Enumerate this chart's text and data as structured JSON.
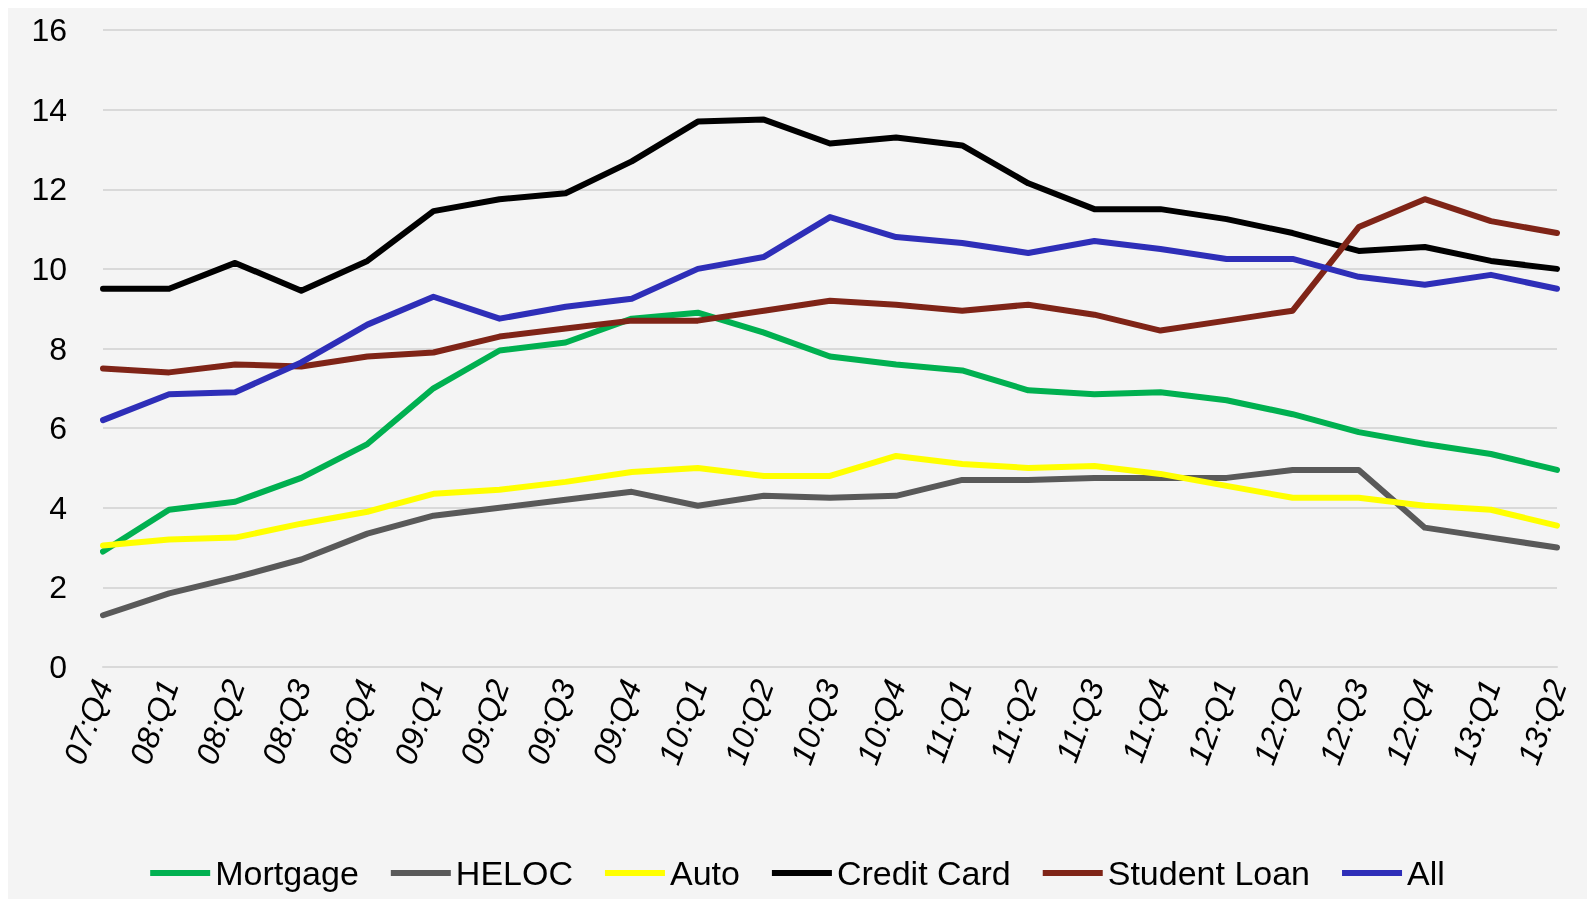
{
  "chart_data": {
    "type": "line",
    "categories": [
      "07:Q4",
      "08:Q1",
      "08:Q2",
      "08:Q3",
      "08:Q4",
      "09:Q1",
      "09:Q2",
      "09:Q3",
      "09:Q4",
      "10:Q1",
      "10:Q2",
      "10:Q3",
      "10:Q4",
      "11:Q1",
      "11:Q2",
      "11:Q3",
      "11:Q4",
      "12:Q1",
      "12:Q2",
      "12:Q3",
      "12:Q4",
      "13:Q1",
      "13:Q2"
    ],
    "series": [
      {
        "name": "Mortgage",
        "color": "#00b050",
        "values": [
          2.9,
          3.95,
          4.15,
          4.75,
          5.6,
          7.0,
          7.95,
          8.15,
          8.75,
          8.9,
          8.4,
          7.8,
          7.6,
          7.45,
          6.95,
          6.85,
          6.9,
          6.7,
          6.35,
          5.9,
          5.6,
          5.35,
          4.95
        ]
      },
      {
        "name": "HELOC",
        "color": "#595959",
        "values": [
          1.3,
          1.85,
          2.25,
          2.7,
          3.35,
          3.8,
          4.0,
          4.2,
          4.4,
          4.05,
          4.3,
          4.25,
          4.3,
          4.7,
          4.7,
          4.75,
          4.75,
          4.75,
          4.95,
          4.95,
          3.5,
          3.25,
          3.0
        ]
      },
      {
        "name": "Auto",
        "color": "#ffff00",
        "values": [
          3.05,
          3.2,
          3.25,
          3.6,
          3.9,
          4.35,
          4.45,
          4.65,
          4.9,
          5.0,
          4.8,
          4.8,
          5.3,
          5.1,
          5.0,
          5.05,
          4.85,
          4.55,
          4.25,
          4.25,
          4.05,
          3.95,
          3.55
        ]
      },
      {
        "name": "Credit Card",
        "color": "#000000",
        "values": [
          9.5,
          9.5,
          10.15,
          9.45,
          10.2,
          11.45,
          11.75,
          11.9,
          12.7,
          13.7,
          13.75,
          13.15,
          13.3,
          13.1,
          12.15,
          11.5,
          11.5,
          11.25,
          10.9,
          10.45,
          10.55,
          10.2,
          10.0
        ]
      },
      {
        "name": "Student Loan",
        "color": "#7f2417",
        "values": [
          7.5,
          7.4,
          7.6,
          7.55,
          7.8,
          7.9,
          8.3,
          8.5,
          8.7,
          8.7,
          8.95,
          9.2,
          9.1,
          8.95,
          9.1,
          8.85,
          8.45,
          8.7,
          8.95,
          11.05,
          11.75,
          11.2,
          10.9
        ]
      },
      {
        "name": "All",
        "color": "#2e2eb8",
        "values": [
          6.2,
          6.85,
          6.9,
          7.65,
          8.6,
          9.3,
          8.75,
          9.05,
          9.25,
          10.0,
          10.3,
          11.3,
          10.8,
          10.65,
          10.4,
          10.7,
          10.5,
          10.25,
          10.25,
          9.8,
          9.6,
          9.85,
          9.5
        ]
      }
    ],
    "ylim": [
      0,
      16
    ],
    "yticks": [
      0,
      2,
      4,
      6,
      8,
      10,
      12,
      14,
      16
    ],
    "grid": "y",
    "legend": "bottom",
    "marker": "none",
    "line_style": "solid"
  }
}
